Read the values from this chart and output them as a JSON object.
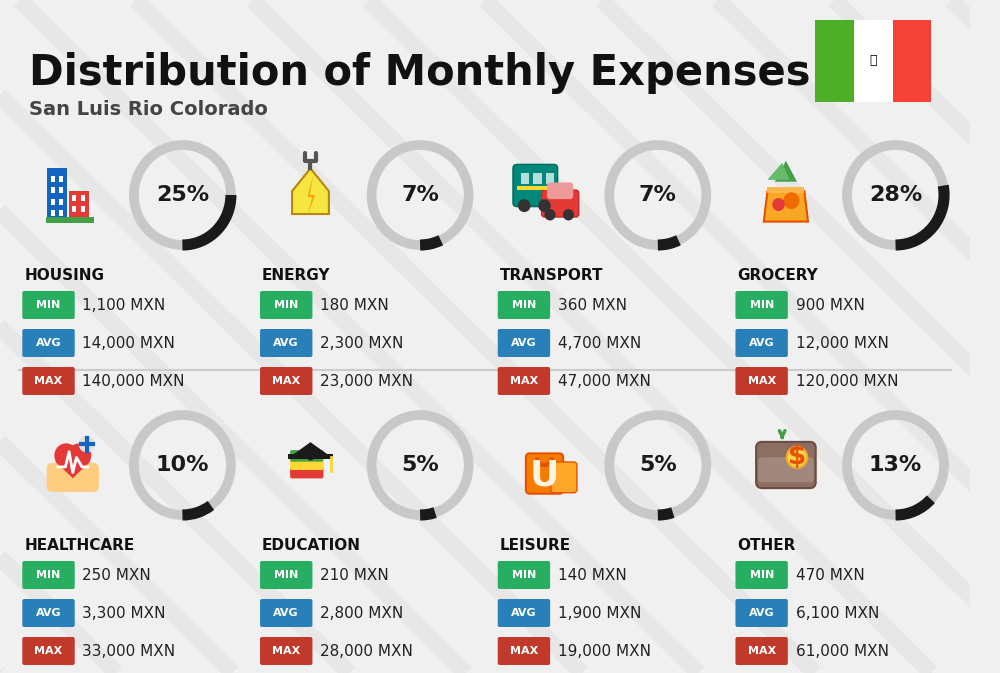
{
  "title": "Distribution of Monthly Expenses",
  "subtitle": "San Luis Rio Colorado",
  "bg_color": "#f0f0f0",
  "categories": [
    {
      "name": "HOUSING",
      "pct": 25,
      "min": "1,100 MXN",
      "avg": "14,000 MXN",
      "max": "140,000 MXN",
      "row": 0,
      "col": 0
    },
    {
      "name": "ENERGY",
      "pct": 7,
      "min": "180 MXN",
      "avg": "2,300 MXN",
      "max": "23,000 MXN",
      "row": 0,
      "col": 1
    },
    {
      "name": "TRANSPORT",
      "pct": 7,
      "min": "360 MXN",
      "avg": "4,700 MXN",
      "max": "47,000 MXN",
      "row": 0,
      "col": 2
    },
    {
      "name": "GROCERY",
      "pct": 28,
      "min": "900 MXN",
      "avg": "12,000 MXN",
      "max": "120,000 MXN",
      "row": 0,
      "col": 3
    },
    {
      "name": "HEALTHCARE",
      "pct": 10,
      "min": "250 MXN",
      "avg": "3,300 MXN",
      "max": "33,000 MXN",
      "row": 1,
      "col": 0
    },
    {
      "name": "EDUCATION",
      "pct": 5,
      "min": "210 MXN",
      "avg": "2,800 MXN",
      "max": "28,000 MXN",
      "row": 1,
      "col": 1
    },
    {
      "name": "LEISURE",
      "pct": 5,
      "min": "140 MXN",
      "avg": "1,900 MXN",
      "max": "19,000 MXN",
      "row": 1,
      "col": 2
    },
    {
      "name": "OTHER",
      "pct": 13,
      "min": "470 MXN",
      "avg": "6,100 MXN",
      "max": "61,000 MXN",
      "row": 1,
      "col": 3
    }
  ],
  "min_color": "#27ae60",
  "avg_color": "#2980b9",
  "max_color": "#c0392b",
  "title_color": "#111111",
  "subtitle_color": "#444444",
  "category_name_color": "#111111",
  "donut_fg_color": "#1a1a1a",
  "donut_bg_color": "#c8c8c8",
  "value_text_color": "#222222",
  "flag_green": "#4caf27",
  "flag_white": "#ffffff",
  "flag_red": "#f44336",
  "stripe_color": "#e0e0e0",
  "divider_color": "#cccccc"
}
